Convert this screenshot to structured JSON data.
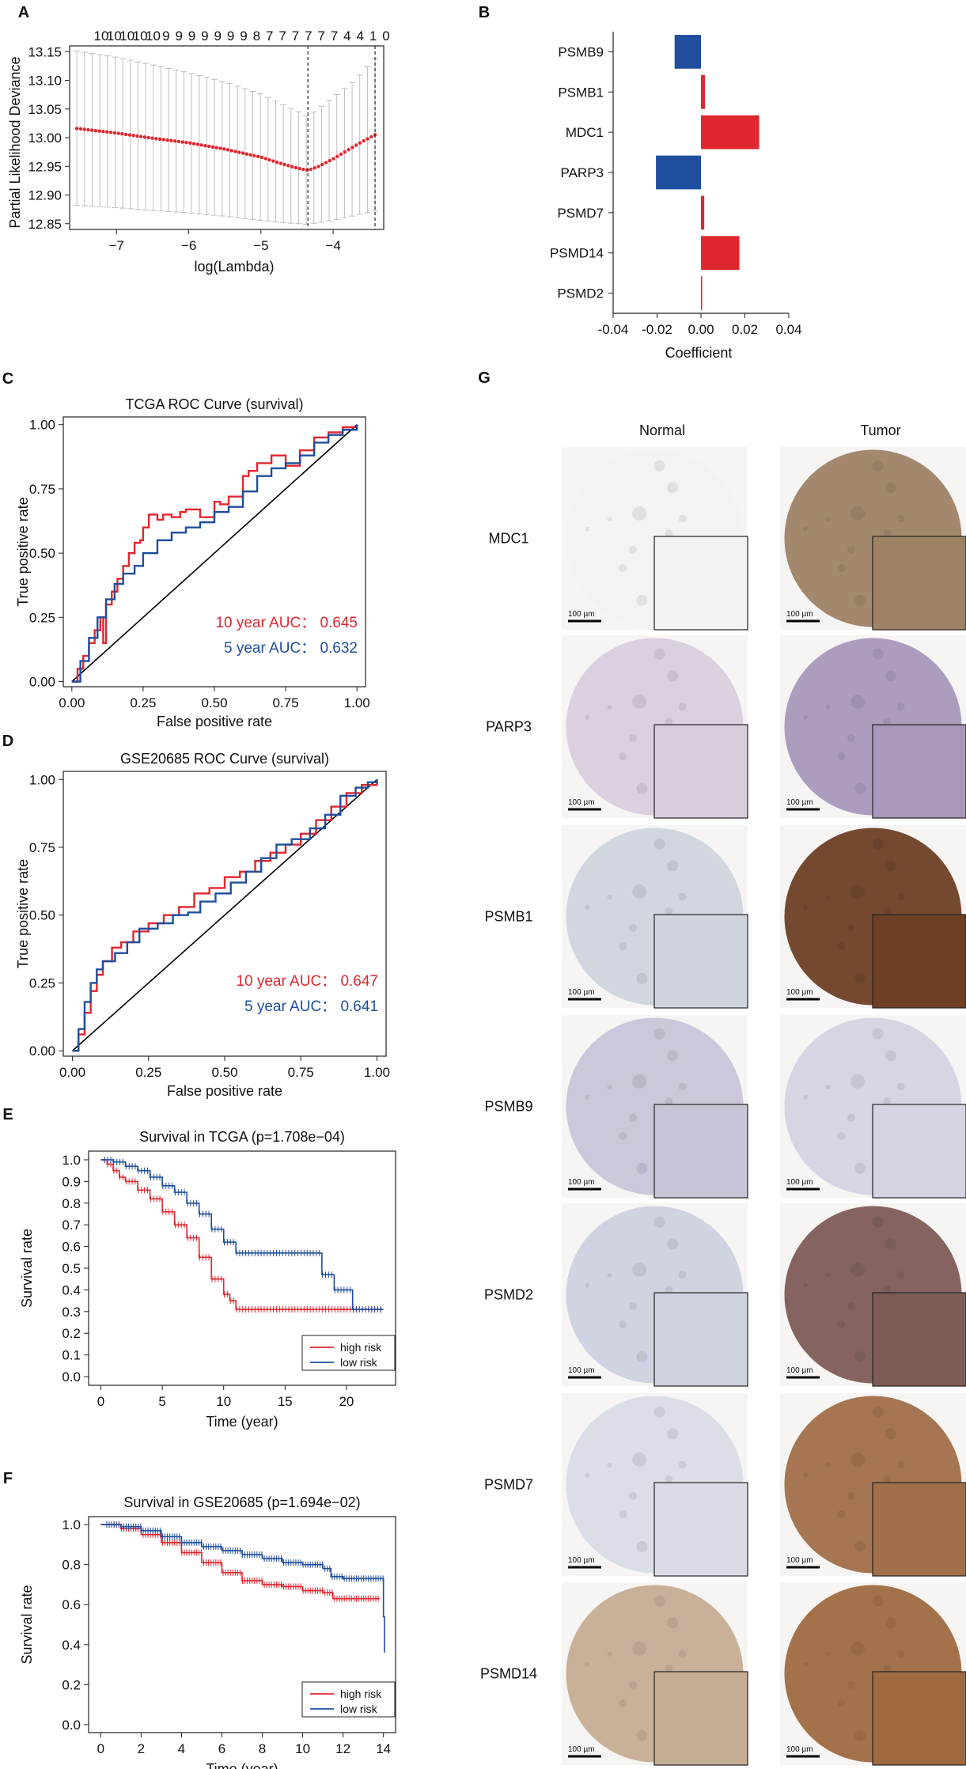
{
  "colors": {
    "red": "#e0262e",
    "blue": "#1f4e9e",
    "gray": "#bdbdbd",
    "axis": "#222222"
  },
  "chart_data": [
    {
      "id": "A",
      "panel_label": "A",
      "type": "line",
      "title": "",
      "xlabel": "log(Lambda)",
      "ylabel": "Partial Likelihood Deviance",
      "xlim": [
        -7.65,
        -3.3
      ],
      "ylim": [
        12.84,
        13.16
      ],
      "xticks": [
        -7,
        -6,
        -5,
        -4
      ],
      "xtick_labels": [
        "−7",
        "−6",
        "−5",
        "−4"
      ],
      "yticks": [
        12.85,
        12.9,
        12.95,
        13.0,
        13.05,
        13.1,
        13.15
      ],
      "ytick_labels": [
        "12.85",
        "12.90",
        "12.95",
        "13.00",
        "13.05",
        "13.10",
        "13.15"
      ],
      "top_labels": "10101010109999999877777744 1 0",
      "top_label_values": [
        "10",
        "10",
        "10",
        "10",
        "10",
        "9",
        "9",
        "9",
        "9",
        "9",
        "9",
        "9",
        "8",
        "7",
        "7",
        "7",
        "7",
        "7",
        "7",
        "4",
        "4",
        "1",
        "0"
      ],
      "vlines": [
        -4.35,
        -3.42
      ],
      "curve": [
        {
          "x": -7.55,
          "y": 13.016
        },
        {
          "x": -7.0,
          "y": 13.008
        },
        {
          "x": -6.5,
          "y": 12.999
        },
        {
          "x": -6.0,
          "y": 12.991
        },
        {
          "x": -5.5,
          "y": 12.98
        },
        {
          "x": -5.0,
          "y": 12.966
        },
        {
          "x": -4.7,
          "y": 12.954
        },
        {
          "x": -4.5,
          "y": 12.947
        },
        {
          "x": -4.35,
          "y": 12.943
        },
        {
          "x": -4.2,
          "y": 12.95
        },
        {
          "x": -4.0,
          "y": 12.963
        },
        {
          "x": -3.8,
          "y": 12.978
        },
        {
          "x": -3.6,
          "y": 12.993
        },
        {
          "x": -3.42,
          "y": 13.005
        }
      ],
      "err_lo": [
        {
          "x": -7.55,
          "y": 12.882
        },
        {
          "x": -7.0,
          "y": 12.878
        },
        {
          "x": -6.5,
          "y": 12.873
        },
        {
          "x": -6.0,
          "y": 12.869
        },
        {
          "x": -5.5,
          "y": 12.863
        },
        {
          "x": -5.0,
          "y": 12.856
        },
        {
          "x": -4.6,
          "y": 12.851
        },
        {
          "x": -4.35,
          "y": 12.849
        },
        {
          "x": -4.0,
          "y": 12.856
        },
        {
          "x": -3.42,
          "y": 12.872
        }
      ],
      "err_hi": [
        {
          "x": -7.55,
          "y": 13.151
        },
        {
          "x": -7.0,
          "y": 13.14
        },
        {
          "x": -6.5,
          "y": 13.127
        },
        {
          "x": -6.0,
          "y": 13.113
        },
        {
          "x": -5.5,
          "y": 13.097
        },
        {
          "x": -5.0,
          "y": 13.076
        },
        {
          "x": -4.6,
          "y": 13.052
        },
        {
          "x": -4.35,
          "y": 13.037
        },
        {
          "x": -4.0,
          "y": 13.07
        },
        {
          "x": -3.7,
          "y": 13.1
        },
        {
          "x": -3.42,
          "y": 13.138
        }
      ],
      "n_points": 40
    },
    {
      "id": "B",
      "panel_label": "B",
      "type": "bar",
      "orientation": "horizontal",
      "title": "",
      "xlabel": "Coefficient",
      "ylabel": "",
      "xlim": [
        -0.04,
        0.04
      ],
      "xticks": [
        -0.04,
        -0.02,
        0.0,
        0.02,
        0.04
      ],
      "xtick_labels": [
        "-0.04",
        "-0.02",
        "0.00",
        "0.02",
        "0.04"
      ],
      "categories": [
        "PSMB9",
        "PSMB1",
        "MDC1",
        "PARP3",
        "PSMD7",
        "PSMD14",
        "PSMD2"
      ],
      "values": [
        -0.012,
        0.0018,
        0.0265,
        -0.0205,
        0.0015,
        0.0175,
        0.0005
      ]
    },
    {
      "id": "C",
      "panel_label": "C",
      "type": "line",
      "title": "TCGA ROC Curve (survival)",
      "xlabel": "False positive rate",
      "ylabel": "True positive rate",
      "xlim": [
        -0.03,
        1.03
      ],
      "ylim": [
        -0.02,
        1.03
      ],
      "ticks": [
        0,
        0.25,
        0.5,
        0.75,
        1.0
      ],
      "xtick_labels": [
        "0.00",
        "0.25",
        "0.50",
        "0.75",
        "1.00"
      ],
      "ytick_labels": [
        "0.00",
        "0.25",
        "0.50",
        "0.75",
        "1.00"
      ],
      "annotations": [
        {
          "text": "10 year AUC： 0.645",
          "color": "red"
        },
        {
          "text": "5 year AUC： 0.632",
          "color": "blue"
        }
      ],
      "series": [
        {
          "name": "10 year",
          "color": "red",
          "x": [
            0,
            0.02,
            0.04,
            0.06,
            0.08,
            0.1,
            0.11,
            0.12,
            0.14,
            0.16,
            0.18,
            0.2,
            0.22,
            0.24,
            0.25,
            0.27,
            0.3,
            0.32,
            0.35,
            0.38,
            0.4,
            0.45,
            0.5,
            0.52,
            0.55,
            0.6,
            0.62,
            0.65,
            0.7,
            0.75,
            0.8,
            0.85,
            0.9,
            0.95,
            1.0
          ],
          "y": [
            0,
            0.05,
            0.1,
            0.15,
            0.2,
            0.25,
            0.15,
            0.3,
            0.35,
            0.4,
            0.45,
            0.5,
            0.54,
            0.55,
            0.6,
            0.65,
            0.63,
            0.65,
            0.64,
            0.66,
            0.67,
            0.64,
            0.7,
            0.69,
            0.72,
            0.8,
            0.82,
            0.85,
            0.88,
            0.84,
            0.9,
            0.95,
            0.97,
            0.99,
            1.0
          ]
        },
        {
          "name": "5 year",
          "color": "blue",
          "x": [
            0,
            0.03,
            0.06,
            0.09,
            0.12,
            0.15,
            0.18,
            0.22,
            0.25,
            0.3,
            0.35,
            0.4,
            0.45,
            0.5,
            0.55,
            0.6,
            0.65,
            0.7,
            0.75,
            0.8,
            0.85,
            0.9,
            0.95,
            1.0
          ],
          "y": [
            0,
            0.08,
            0.17,
            0.25,
            0.32,
            0.38,
            0.42,
            0.45,
            0.5,
            0.55,
            0.58,
            0.6,
            0.62,
            0.66,
            0.68,
            0.74,
            0.8,
            0.83,
            0.85,
            0.88,
            0.93,
            0.96,
            0.98,
            1.0
          ]
        }
      ]
    },
    {
      "id": "D",
      "panel_label": "D",
      "type": "line",
      "title": "GSE20685 ROC Curve (survival)",
      "xlabel": "False positive rate",
      "ylabel": "True positive rate",
      "xlim": [
        -0.03,
        1.03
      ],
      "ylim": [
        -0.02,
        1.03
      ],
      "ticks": [
        0,
        0.25,
        0.5,
        0.75,
        1.0
      ],
      "xtick_labels": [
        "0.00",
        "0.25",
        "0.50",
        "0.75",
        "1.00"
      ],
      "ytick_labels": [
        "0.00",
        "0.25",
        "0.50",
        "0.75",
        "1.00"
      ],
      "annotations": [
        {
          "text": "10 year AUC： 0.647",
          "color": "red"
        },
        {
          "text": "5 year AUC： 0.641",
          "color": "blue"
        }
      ],
      "series": [
        {
          "name": "10 year",
          "color": "red",
          "x": [
            0,
            0.02,
            0.04,
            0.06,
            0.08,
            0.1,
            0.13,
            0.16,
            0.2,
            0.25,
            0.3,
            0.35,
            0.4,
            0.45,
            0.5,
            0.55,
            0.6,
            0.65,
            0.7,
            0.75,
            0.8,
            0.85,
            0.9,
            0.95,
            1.0
          ],
          "y": [
            0,
            0.06,
            0.14,
            0.22,
            0.28,
            0.33,
            0.38,
            0.4,
            0.44,
            0.47,
            0.5,
            0.53,
            0.58,
            0.6,
            0.64,
            0.66,
            0.7,
            0.73,
            0.76,
            0.8,
            0.85,
            0.9,
            0.95,
            0.98,
            1.0
          ]
        },
        {
          "name": "5 year",
          "color": "blue",
          "x": [
            0,
            0.02,
            0.04,
            0.06,
            0.08,
            0.1,
            0.14,
            0.18,
            0.22,
            0.28,
            0.33,
            0.38,
            0.42,
            0.47,
            0.52,
            0.57,
            0.62,
            0.67,
            0.72,
            0.78,
            0.83,
            0.88,
            0.93,
            0.97,
            1.0
          ],
          "y": [
            0,
            0.08,
            0.18,
            0.25,
            0.3,
            0.33,
            0.36,
            0.4,
            0.45,
            0.47,
            0.5,
            0.51,
            0.55,
            0.58,
            0.62,
            0.66,
            0.71,
            0.76,
            0.78,
            0.82,
            0.87,
            0.94,
            0.97,
            0.99,
            1.0
          ]
        }
      ]
    },
    {
      "id": "E",
      "panel_label": "E",
      "type": "line",
      "title": "Survival in TCGA (p=1.708e−04)",
      "xlabel": "Time (year)",
      "ylabel": "Survival rate",
      "xlim": [
        -1,
        24
      ],
      "ylim": [
        -0.04,
        1.04
      ],
      "xticks": [
        0,
        5,
        10,
        15,
        20
      ],
      "yticks": [
        0.0,
        0.1,
        0.2,
        0.3,
        0.4,
        0.5,
        0.6,
        0.7,
        0.8,
        0.9,
        1.0
      ],
      "legend": [
        "high risk",
        "low risk"
      ],
      "series": [
        {
          "name": "high risk",
          "color": "red",
          "x": [
            0,
            0.5,
            1,
            1.5,
            2,
            3,
            4,
            5,
            6,
            7,
            8,
            9,
            10,
            10.5,
            11,
            12,
            15,
            20,
            23
          ],
          "y": [
            1.0,
            0.98,
            0.95,
            0.92,
            0.9,
            0.86,
            0.82,
            0.76,
            0.7,
            0.64,
            0.55,
            0.45,
            0.38,
            0.35,
            0.31,
            0.31,
            0.31,
            0.31,
            0.31
          ]
        },
        {
          "name": "low risk",
          "color": "blue",
          "x": [
            0,
            1,
            2,
            3,
            4,
            5,
            6,
            7,
            8,
            9,
            10,
            11,
            12,
            15,
            17.5,
            18,
            19,
            20.5,
            23
          ],
          "y": [
            1.0,
            0.99,
            0.97,
            0.95,
            0.92,
            0.88,
            0.85,
            0.8,
            0.75,
            0.68,
            0.62,
            0.57,
            0.57,
            0.57,
            0.57,
            0.47,
            0.4,
            0.31,
            0.31
          ]
        }
      ]
    },
    {
      "id": "F",
      "panel_label": "F",
      "type": "line",
      "title": "Survival in GSE20685 (p=1.694e−02)",
      "xlabel": "Time (year)",
      "ylabel": "Survival rate",
      "xlim": [
        -0.6,
        14.6
      ],
      "ylim": [
        -0.04,
        1.04
      ],
      "xticks": [
        0,
        2,
        4,
        6,
        8,
        10,
        12,
        14
      ],
      "yticks": [
        0.0,
        0.2,
        0.4,
        0.6,
        0.8,
        1.0
      ],
      "legend": [
        "high risk",
        "low risk"
      ],
      "series": [
        {
          "name": "high risk",
          "color": "red",
          "x": [
            0,
            1,
            2,
            3,
            4,
            5,
            6,
            7,
            8,
            9,
            10,
            11,
            11.5,
            12,
            13,
            13.8
          ],
          "y": [
            1.0,
            0.98,
            0.95,
            0.91,
            0.86,
            0.81,
            0.76,
            0.72,
            0.7,
            0.69,
            0.67,
            0.66,
            0.63,
            0.63,
            0.63,
            0.63
          ]
        },
        {
          "name": "low risk",
          "color": "blue",
          "x": [
            0,
            1,
            2,
            3,
            4,
            5,
            6,
            7,
            8,
            9,
            10,
            11,
            11.4,
            12,
            13,
            13.9,
            14,
            14.05
          ],
          "y": [
            1.0,
            0.99,
            0.97,
            0.94,
            0.91,
            0.89,
            0.87,
            0.85,
            0.83,
            0.81,
            0.8,
            0.78,
            0.74,
            0.73,
            0.73,
            0.73,
            0.54,
            0.36
          ]
        }
      ]
    }
  ],
  "panel_g": {
    "label": "G",
    "col_headers": [
      "Normal",
      "Tumor"
    ],
    "scale_bar": "100 µm",
    "rows": [
      {
        "gene": "MDC1",
        "normal": "#f4f2f0",
        "tumor": "#9e8266"
      },
      {
        "gene": "PARP3",
        "normal": "#d9cedd",
        "tumor": "#a898bb"
      },
      {
        "gene": "PSMB1",
        "normal": "#cfd4dd",
        "tumor": "#6e3f25"
      },
      {
        "gene": "PSMB9",
        "normal": "#cbc3d8",
        "tumor": "#d6d2e2"
      },
      {
        "gene": "PSMD2",
        "normal": "#ced1df",
        "tumor": "#7e5c56"
      },
      {
        "gene": "PSMD7",
        "normal": "#d9dbe6",
        "tumor": "#a06f48"
      },
      {
        "gene": "PSMD14",
        "normal": "#c6ad93",
        "tumor": "#9f6a40"
      }
    ]
  }
}
